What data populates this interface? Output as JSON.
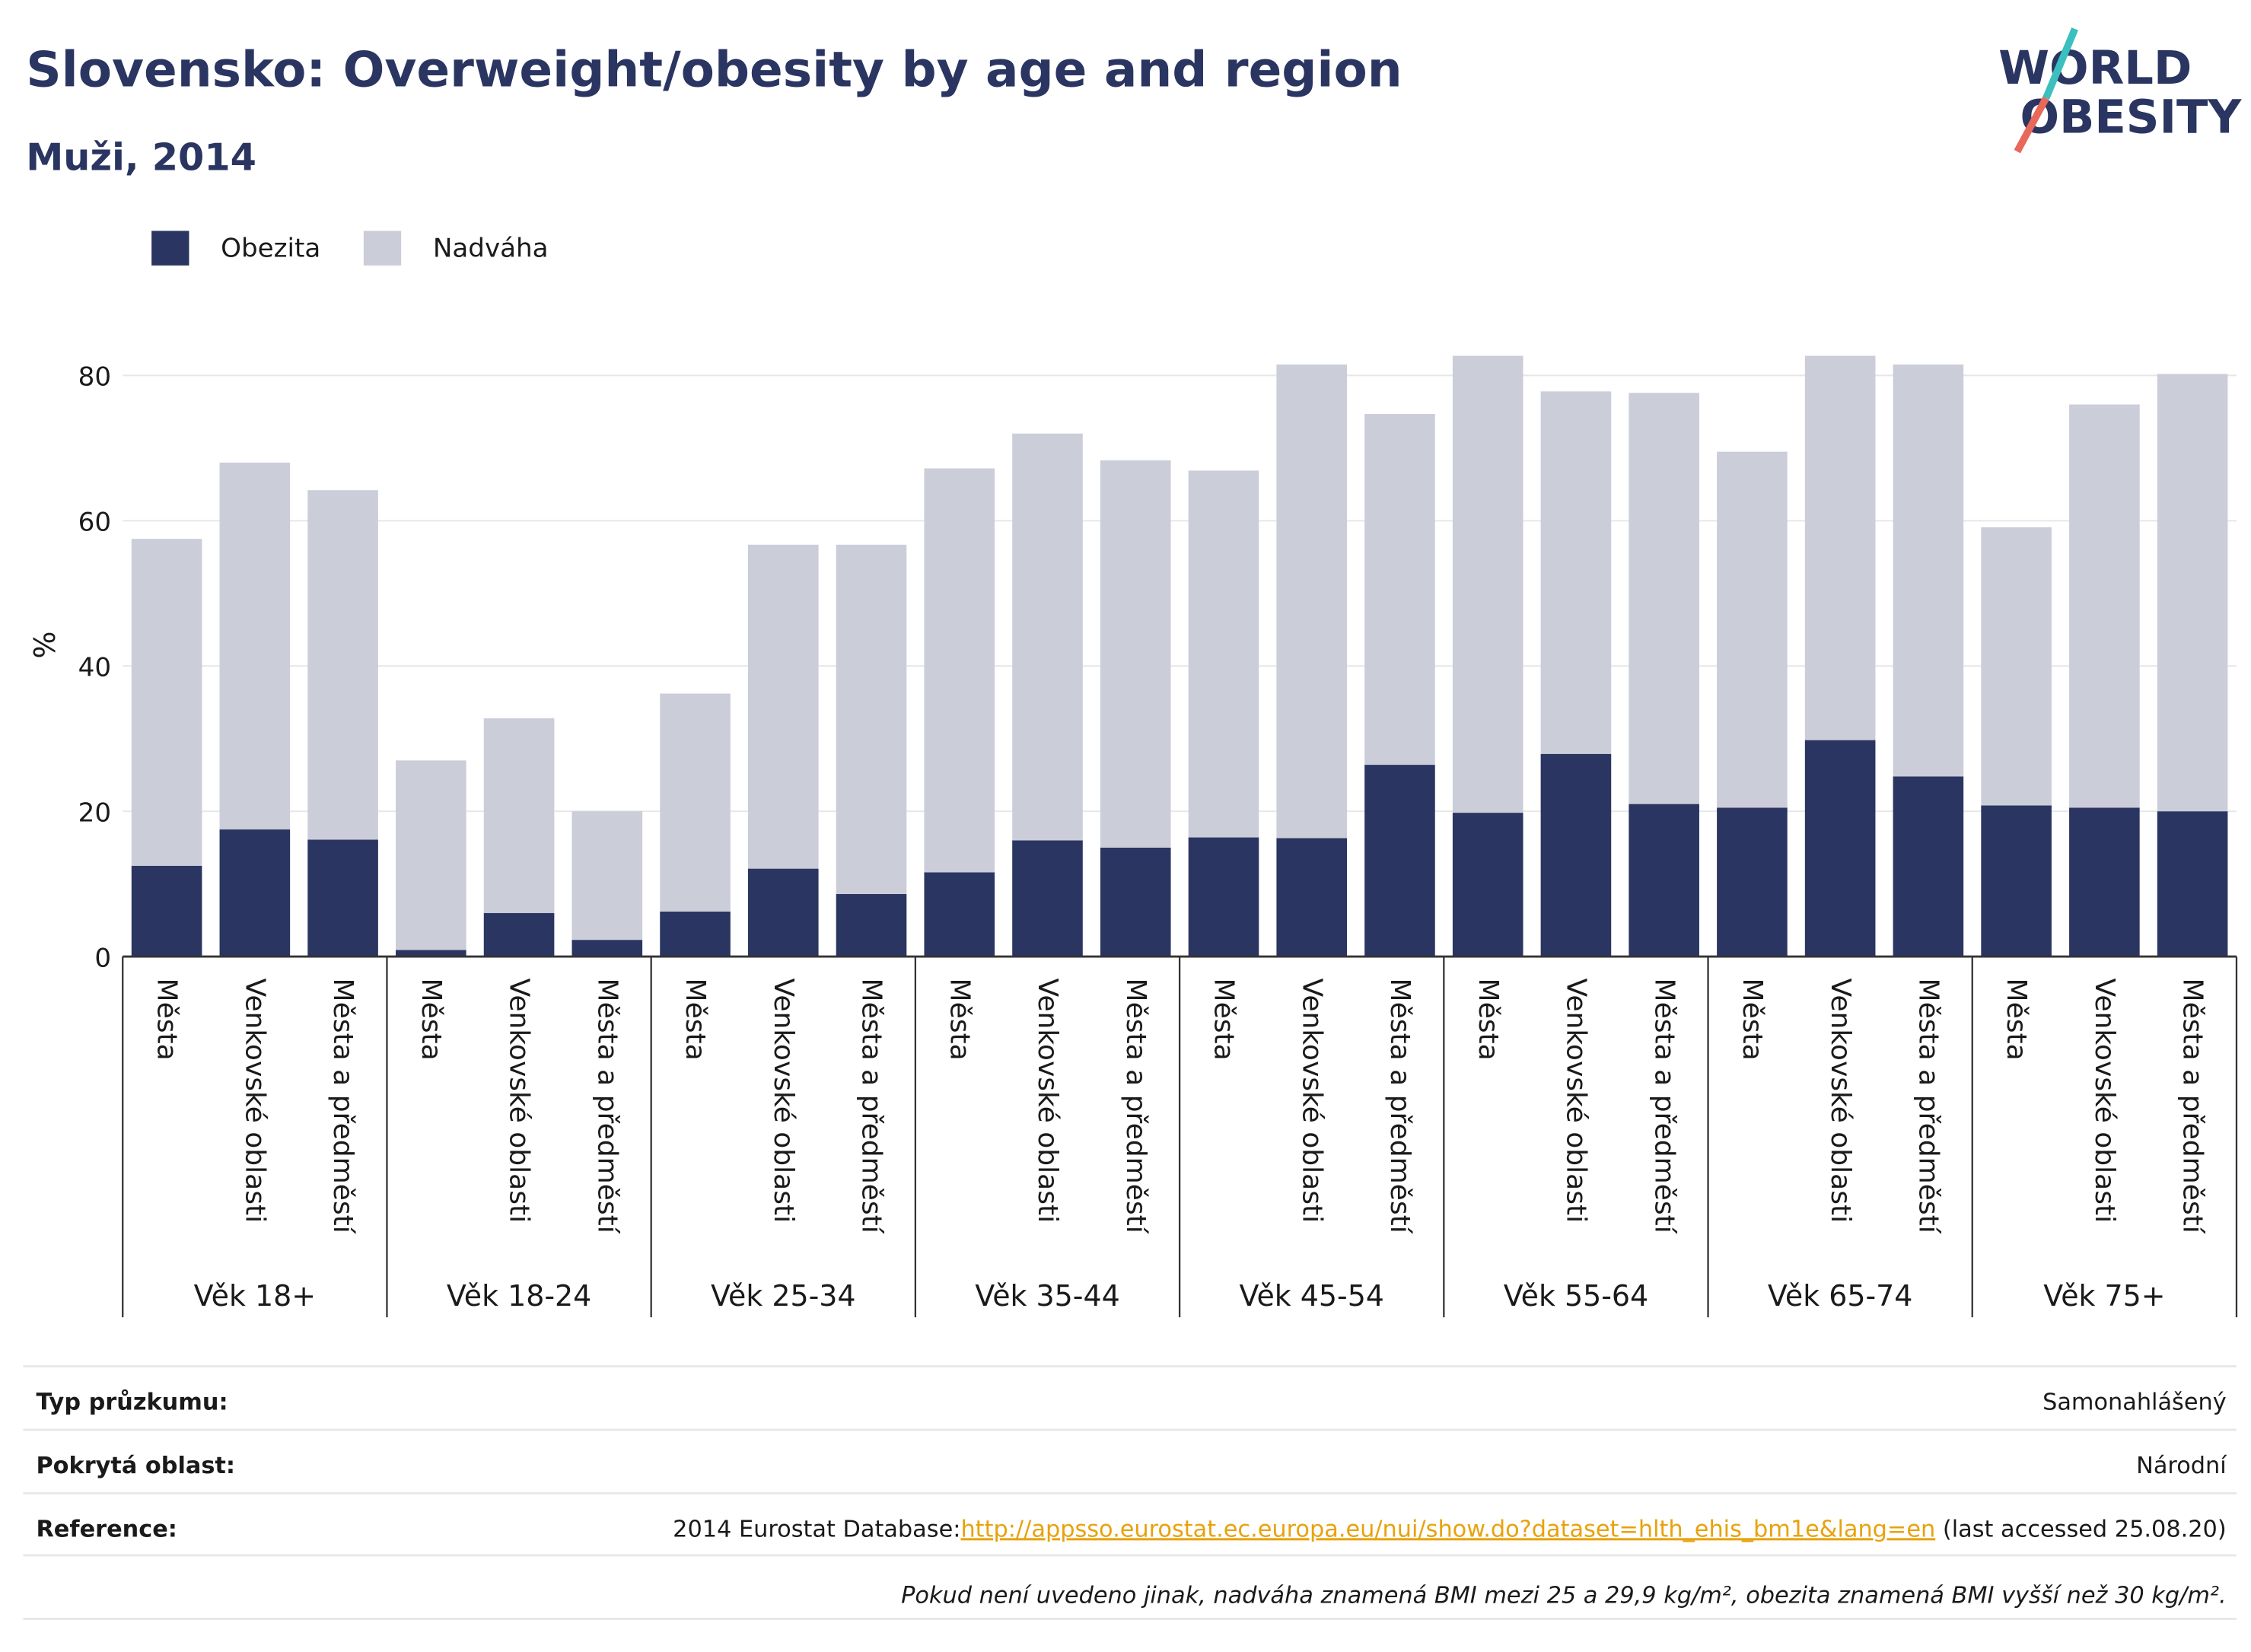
{
  "chart_data": {
    "type": "bar",
    "stacked": true,
    "title": "Slovensko: Overweight/obesity by age and region",
    "subtitle": "Muži, 2014",
    "y_label": "%",
    "categories": [
      "Města",
      "Venkovské oblasti",
      "Města a předměstí",
      "Města",
      "Venkovské oblasti",
      "Města a předměstí",
      "Města",
      "Venkovské oblasti",
      "Města a předměstí",
      "Města",
      "Venkovské oblasti",
      "Města a předměstí",
      "Města",
      "Venkovské oblasti",
      "Města a předměstí",
      "Města",
      "Venkovské oblasti",
      "Města a předměstí",
      "Města",
      "Venkovské oblasti",
      "Města a předměstí",
      "Města",
      "Venkovské oblasti",
      "Města a předměstí"
    ],
    "groups": [
      "Věk 18+",
      "Věk 18-24",
      "Věk 25-34",
      "Věk 35-44",
      "Věk 45-54",
      "Věk 55-64",
      "Věk 65-74",
      "Věk 75+"
    ],
    "series": [
      {
        "name": "Obezita",
        "color": "#2a3561",
        "values": [
          12.5,
          17.5,
          16.1,
          0.9,
          6,
          2.3,
          6.2,
          12.1,
          8.6,
          11.6,
          16,
          15,
          16.4,
          16.3,
          26.4,
          19.8,
          27.9,
          21,
          20.5,
          29.8,
          24.8,
          20.8,
          20.5,
          20
        ]
      },
      {
        "name": "Nadváha",
        "color": "#cbcdd9",
        "values": [
          45,
          50.5,
          48.1,
          26.1,
          26.8,
          17.7,
          30,
          44.6,
          48.1,
          55.6,
          56,
          53.3,
          50.5,
          65.2,
          48.3,
          62.9,
          49.9,
          56.6,
          49,
          52.9,
          56.7,
          38.3,
          55.5,
          60.2
        ]
      }
    ],
    "ylim": [
      0,
      86
    ],
    "yticks": [
      0,
      20,
      40,
      60,
      80
    ],
    "grid": true,
    "legend": "top-left"
  },
  "logo": {
    "line1": "WORLD",
    "line2": "OBESITY"
  },
  "footer": {
    "rows": [
      {
        "label": "Typ průzkumu:",
        "value": "Samonahlášený"
      },
      {
        "label": "Pokrytá oblast:",
        "value": "Národní"
      },
      {
        "label": "Reference:",
        "text": "2014 Eurostat Database:",
        "link": "http://appsso.eurostat.ec.europa.eu/nui/show.do?dataset=hlth_ehis_bm1e&lang=en",
        "suffix": " (last accessed 25.08.20)"
      }
    ],
    "note": "Pokud není uvedeno jinak, nadváha znamená BMI mezi 25 a 29,9 kg/m², obezita znamená BMI vyšší než 30 kg/m²."
  }
}
